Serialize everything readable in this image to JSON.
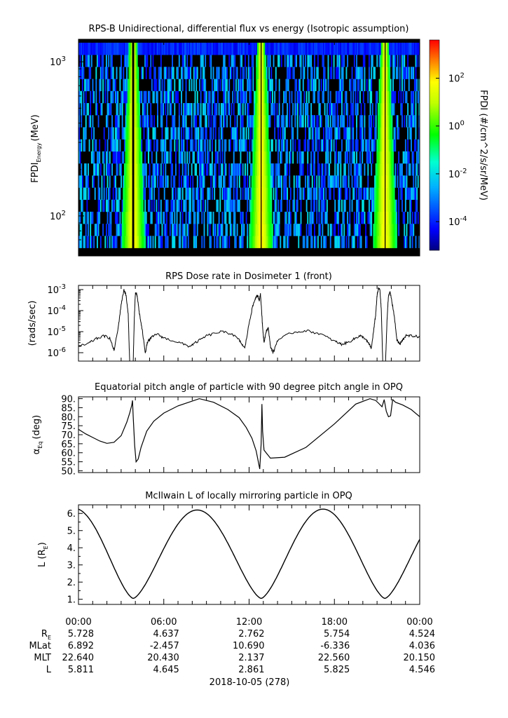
{
  "chart_data": [
    {
      "type": "heatmap",
      "title": "RPS-B  Unidirectional, differential flux vs energy (Isotropic assumption)",
      "ylabel": "FPDI",
      "ylabel_sub": "Energy",
      "ylabel_unit": "(MeV)",
      "yscale": "log",
      "ylim": [
        55,
        1400
      ],
      "ytick_bases": [
        "10",
        "10"
      ],
      "ytick_exps": [
        "3",
        "2"
      ],
      "ytick_values": [
        1000,
        100
      ],
      "time_range_hours": [
        0,
        24
      ],
      "enhancement_centers_hours": [
        3.85,
        12.85,
        21.55
      ],
      "colorbar": {
        "label": "FPDI (#/cm^2/s/sr/MeV)",
        "scale": "log",
        "range_log10": [
          -5.2,
          3.6
        ],
        "tick_bases": [
          "10",
          "10",
          "10",
          "10"
        ],
        "tick_exps": [
          "2",
          "0",
          "-2",
          "-4"
        ],
        "tick_log10": [
          2,
          0,
          -2,
          -4
        ]
      }
    },
    {
      "type": "line",
      "title": "RPS  Dose rate in Dosimeter 1 (front)",
      "ylabel": "(rads/sec)",
      "yscale": "log",
      "ylim_log10": [
        -6.4,
        -2.8
      ],
      "ytick_bases": [
        "10",
        "10",
        "10",
        "10"
      ],
      "ytick_exps": [
        "-3",
        "-4",
        "-5",
        "-6"
      ],
      "ytick_log10": [
        -3,
        -4,
        -5,
        -6
      ],
      "x": [
        0.0,
        0.6,
        1.2,
        1.8,
        2.2,
        2.5,
        2.8,
        3.0,
        3.2,
        3.35,
        3.5,
        3.6,
        3.7,
        3.78,
        3.85,
        3.93,
        4.0,
        4.08,
        4.15,
        4.3,
        4.5,
        4.7,
        4.85,
        5.1,
        5.5,
        6.0,
        7.0,
        7.8,
        8.3,
        9.0,
        10.0,
        10.8,
        11.3,
        11.7,
        12.0,
        12.25,
        12.45,
        12.6,
        12.72,
        12.8,
        12.88,
        12.95,
        13.05,
        13.2,
        13.35,
        13.5,
        13.7,
        14.0,
        15.0,
        16.0,
        17.0,
        18.0,
        18.5,
        19.0,
        19.5,
        19.8,
        20.1,
        20.4,
        20.6,
        20.75,
        20.9,
        21.0,
        21.1,
        21.2,
        21.3,
        21.4,
        21.5,
        21.6,
        21.7,
        21.8,
        21.9,
        22.0,
        22.2,
        22.4,
        22.6,
        22.8,
        23.0,
        23.5,
        24.0
      ],
      "y_log10": [
        -5.7,
        -5.6,
        -5.35,
        -5.2,
        -5.3,
        -5.9,
        -4.8,
        -3.7,
        -3.0,
        -3.3,
        -4.2,
        -6.4,
        -6.4,
        -6.4,
        -6.4,
        -4.3,
        -3.2,
        -3.2,
        -3.4,
        -4.2,
        -5.0,
        -6.0,
        -5.5,
        -5.3,
        -5.1,
        -5.3,
        -5.5,
        -5.7,
        -5.5,
        -5.2,
        -5.0,
        -5.1,
        -5.4,
        -5.8,
        -4.6,
        -3.8,
        -3.4,
        -3.3,
        -3.5,
        -3.2,
        -4.0,
        -4.8,
        -5.5,
        -5.0,
        -4.8,
        -5.7,
        -6.0,
        -5.4,
        -5.05,
        -4.95,
        -5.1,
        -5.45,
        -5.6,
        -5.5,
        -5.3,
        -5.2,
        -5.3,
        -5.55,
        -5.8,
        -5.0,
        -4.2,
        -3.3,
        -2.95,
        -3.0,
        -4.0,
        -6.4,
        -6.4,
        -6.4,
        -4.5,
        -3.3,
        -3.1,
        -3.4,
        -4.2,
        -5.4,
        -5.6,
        -5.4,
        -5.2,
        -5.2,
        -5.25
      ]
    },
    {
      "type": "line",
      "title": "Equatorial pitch angle of particle with 90 degree pitch angle in OPQ",
      "ylabel": "α",
      "ylabel_sub": "Eq",
      "ylabel_unit": "(deg)",
      "ylim": [
        49,
        91
      ],
      "yticks": [
        "90.",
        "85.",
        "80.",
        "75.",
        "70.",
        "65.",
        "60.",
        "55.",
        "50."
      ],
      "ytick_values": [
        90,
        85,
        80,
        75,
        70,
        65,
        60,
        55,
        50
      ],
      "x": [
        0.0,
        0.5,
        1.0,
        1.5,
        2.0,
        2.5,
        3.0,
        3.4,
        3.6,
        3.75,
        3.8,
        3.85,
        3.95,
        4.05,
        4.2,
        4.4,
        4.8,
        5.3,
        6.0,
        7.0,
        8.5,
        9.5,
        10.5,
        11.3,
        11.8,
        12.2,
        12.5,
        12.75,
        12.85,
        12.9,
        12.95,
        13.05,
        13.2,
        13.5,
        14.5,
        16.0,
        18.0,
        19.5,
        20.5,
        20.9,
        21.1,
        21.35,
        21.5,
        21.65,
        21.8,
        21.95,
        22.1,
        22.3,
        22.8,
        23.4,
        24.0
      ],
      "y": [
        73,
        70.5,
        68.5,
        66.5,
        65.2,
        65.8,
        69.5,
        77,
        82,
        86.5,
        89,
        80,
        64,
        55,
        56.5,
        63,
        72,
        77.5,
        82,
        86,
        90,
        88,
        84,
        79.5,
        74,
        68,
        61,
        51,
        65,
        87,
        72,
        61.5,
        60,
        57,
        57.5,
        63,
        76,
        87,
        90,
        89,
        87.5,
        85.5,
        89.5,
        83,
        80,
        80.5,
        89.5,
        88,
        86.5,
        84,
        80
      ]
    },
    {
      "type": "line",
      "title": "McIlwain L of locally mirroring particle in OPQ",
      "ylabel": "L (R",
      "ylabel_sub": "E",
      "ylabel_unit": ")",
      "ylim": [
        0.7,
        6.5
      ],
      "yticks": [
        "6.",
        "5.",
        "4.",
        "3.",
        "2.",
        "1."
      ],
      "ytick_values": [
        6,
        5,
        4,
        3,
        2,
        1
      ],
      "orbit": {
        "periapsis_hours": [
          3.85,
          12.85,
          21.55
        ],
        "apoapsis_hours": [
          -0.3,
          8.35,
          17.2
        ],
        "periapsis_L": 1.05,
        "apoapsis_L": [
          6.3,
          6.2,
          6.25
        ]
      }
    }
  ],
  "time_axis": {
    "ticks": [
      "00:00",
      "06:00",
      "12:00",
      "18:00",
      "00:00"
    ],
    "date_label": "2018-10-05 (278)"
  },
  "ephemeris": {
    "rows": [
      {
        "label": "R",
        "label_sub": "E",
        "values": [
          "5.728",
          "4.637",
          "2.762",
          "5.754",
          "4.524"
        ]
      },
      {
        "label": "MLat",
        "label_sub": "",
        "values": [
          "6.892",
          "-2.457",
          "10.690",
          "-6.336",
          "4.036"
        ]
      },
      {
        "label": "MLT",
        "label_sub": "",
        "values": [
          "22.640",
          "20.430",
          "2.137",
          "22.560",
          "20.150"
        ]
      },
      {
        "label": "L",
        "label_sub": "",
        "values": [
          "5.811",
          "4.645",
          "2.861",
          "5.825",
          "4.546"
        ]
      }
    ]
  }
}
